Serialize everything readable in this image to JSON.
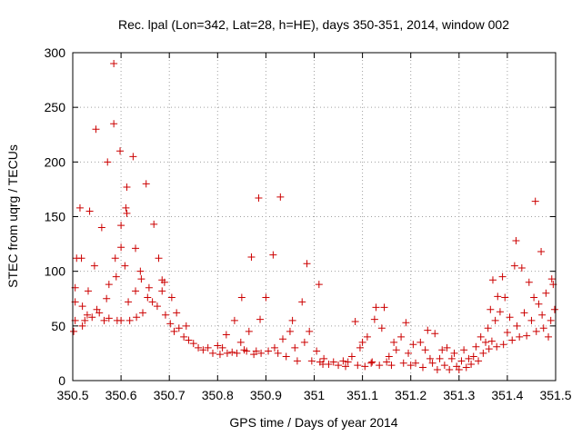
{
  "chart_data": {
    "type": "scatter",
    "title": "Rec. lpal (Lon=342, Lat=28, h=HE), days 350-351, 2014, window 002",
    "xlabel": "GPS time / Days of year 2014",
    "ylabel": "STEC from uqrg / TECUs",
    "xlim": [
      350.5,
      351.5
    ],
    "ylim": [
      0,
      300
    ],
    "xticks": [
      350.5,
      350.6,
      350.7,
      350.8,
      350.9,
      351,
      351.1,
      351.2,
      351.3,
      351.4,
      351.5
    ],
    "xtick_labels": [
      "350.5",
      "350.6",
      "350.7",
      "350.8",
      "350.9",
      "351",
      "351.1",
      "351.2",
      "351.3",
      "351.4",
      "351.5"
    ],
    "yticks": [
      0,
      50,
      100,
      150,
      200,
      250,
      300
    ],
    "ytick_labels": [
      "0",
      "50",
      "100",
      "150",
      "200",
      "250",
      "300"
    ],
    "grid": true,
    "marker": "+",
    "marker_color": "#cc0000",
    "points": [
      [
        350.502,
        45
      ],
      [
        350.505,
        55
      ],
      [
        350.505,
        72
      ],
      [
        350.505,
        85
      ],
      [
        350.508,
        112
      ],
      [
        350.515,
        158
      ],
      [
        350.518,
        112
      ],
      [
        350.52,
        68
      ],
      [
        350.52,
        50
      ],
      [
        350.525,
        55
      ],
      [
        350.53,
        60
      ],
      [
        350.532,
        82
      ],
      [
        350.535,
        155
      ],
      [
        350.54,
        58
      ],
      [
        350.545,
        105
      ],
      [
        350.548,
        230
      ],
      [
        350.55,
        65
      ],
      [
        350.555,
        62
      ],
      [
        350.56,
        140
      ],
      [
        350.565,
        55
      ],
      [
        350.57,
        75
      ],
      [
        350.572,
        200
      ],
      [
        350.575,
        88
      ],
      [
        350.575,
        57
      ],
      [
        350.585,
        290
      ],
      [
        350.585,
        235
      ],
      [
        350.588,
        112
      ],
      [
        350.59,
        95
      ],
      [
        350.592,
        55
      ],
      [
        350.598,
        210
      ],
      [
        350.6,
        142
      ],
      [
        350.6,
        122
      ],
      [
        350.6,
        55
      ],
      [
        350.608,
        105
      ],
      [
        350.61,
        158
      ],
      [
        350.612,
        177
      ],
      [
        350.612,
        153
      ],
      [
        350.615,
        72
      ],
      [
        350.618,
        55
      ],
      [
        350.625,
        205
      ],
      [
        350.63,
        121
      ],
      [
        350.63,
        82
      ],
      [
        350.632,
        58
      ],
      [
        350.64,
        100
      ],
      [
        350.642,
        93
      ],
      [
        350.645,
        62
      ],
      [
        350.652,
        180
      ],
      [
        350.655,
        76
      ],
      [
        350.658,
        85
      ],
      [
        350.665,
        72
      ],
      [
        350.668,
        143
      ],
      [
        350.675,
        68
      ],
      [
        350.678,
        112
      ],
      [
        350.685,
        82
      ],
      [
        350.685,
        92
      ],
      [
        350.69,
        90
      ],
      [
        350.692,
        60
      ],
      [
        350.702,
        52
      ],
      [
        350.705,
        76
      ],
      [
        350.71,
        45
      ],
      [
        350.715,
        62
      ],
      [
        350.72,
        48
      ],
      [
        350.73,
        40
      ],
      [
        350.735,
        50
      ],
      [
        350.74,
        37
      ],
      [
        350.75,
        34
      ],
      [
        350.76,
        30
      ],
      [
        350.77,
        28
      ],
      [
        350.78,
        30
      ],
      [
        350.79,
        25
      ],
      [
        350.8,
        32
      ],
      [
        350.805,
        24
      ],
      [
        350.81,
        30
      ],
      [
        350.818,
        42
      ],
      [
        350.82,
        25
      ],
      [
        350.83,
        26
      ],
      [
        350.835,
        55
      ],
      [
        350.84,
        25
      ],
      [
        350.848,
        35
      ],
      [
        350.85,
        76
      ],
      [
        350.855,
        28
      ],
      [
        350.86,
        27
      ],
      [
        350.865,
        45
      ],
      [
        350.87,
        113
      ],
      [
        350.875,
        24
      ],
      [
        350.88,
        27
      ],
      [
        350.885,
        167
      ],
      [
        350.888,
        56
      ],
      [
        350.89,
        25
      ],
      [
        350.9,
        76
      ],
      [
        350.905,
        27
      ],
      [
        350.915,
        115
      ],
      [
        350.918,
        30
      ],
      [
        350.925,
        25
      ],
      [
        350.93,
        168
      ],
      [
        350.935,
        38
      ],
      [
        350.942,
        22
      ],
      [
        350.95,
        45
      ],
      [
        350.955,
        55
      ],
      [
        350.96,
        30
      ],
      [
        350.965,
        18
      ],
      [
        350.975,
        72
      ],
      [
        350.98,
        35
      ],
      [
        350.985,
        107
      ],
      [
        350.99,
        45
      ],
      [
        350.995,
        18
      ],
      [
        351.005,
        27
      ],
      [
        351.01,
        88
      ],
      [
        351.012,
        17
      ],
      [
        351.018,
        15
      ],
      [
        351.02,
        20
      ],
      [
        351.03,
        15
      ],
      [
        351.04,
        17
      ],
      [
        351.05,
        14
      ],
      [
        351.06,
        18
      ],
      [
        351.065,
        13
      ],
      [
        351.07,
        17
      ],
      [
        351.078,
        22
      ],
      [
        351.085,
        54
      ],
      [
        351.09,
        14
      ],
      [
        351.095,
        30
      ],
      [
        351.1,
        35
      ],
      [
        351.105,
        13
      ],
      [
        351.11,
        40
      ],
      [
        351.118,
        16
      ],
      [
        351.12,
        17
      ],
      [
        351.125,
        56
      ],
      [
        351.128,
        67
      ],
      [
        351.135,
        14
      ],
      [
        351.14,
        48
      ],
      [
        351.145,
        67
      ],
      [
        351.15,
        17
      ],
      [
        351.155,
        22
      ],
      [
        351.16,
        14
      ],
      [
        351.165,
        35
      ],
      [
        351.17,
        28
      ],
      [
        351.18,
        40
      ],
      [
        351.185,
        16
      ],
      [
        351.19,
        53
      ],
      [
        351.195,
        25
      ],
      [
        351.2,
        14
      ],
      [
        351.205,
        33
      ],
      [
        351.21,
        16
      ],
      [
        351.22,
        35
      ],
      [
        351.225,
        12
      ],
      [
        351.23,
        28
      ],
      [
        351.235,
        46
      ],
      [
        351.24,
        20
      ],
      [
        351.245,
        16
      ],
      [
        351.25,
        43
      ],
      [
        351.255,
        10
      ],
      [
        351.26,
        20
      ],
      [
        351.265,
        28
      ],
      [
        351.27,
        14
      ],
      [
        351.275,
        30
      ],
      [
        351.28,
        10
      ],
      [
        351.285,
        20
      ],
      [
        351.29,
        25
      ],
      [
        351.295,
        13
      ],
      [
        351.3,
        10
      ],
      [
        351.305,
        18
      ],
      [
        351.31,
        28
      ],
      [
        351.315,
        12
      ],
      [
        351.32,
        20
      ],
      [
        351.325,
        15
      ],
      [
        351.33,
        22
      ],
      [
        351.335,
        31
      ],
      [
        351.34,
        18
      ],
      [
        351.345,
        40
      ],
      [
        351.35,
        25
      ],
      [
        351.355,
        35
      ],
      [
        351.36,
        48
      ],
      [
        351.362,
        29
      ],
      [
        351.365,
        65
      ],
      [
        351.368,
        36
      ],
      [
        351.37,
        92
      ],
      [
        351.375,
        55
      ],
      [
        351.378,
        31
      ],
      [
        351.38,
        77
      ],
      [
        351.385,
        63
      ],
      [
        351.39,
        95
      ],
      [
        351.392,
        33
      ],
      [
        351.395,
        76
      ],
      [
        351.4,
        44
      ],
      [
        351.405,
        58
      ],
      [
        351.41,
        37
      ],
      [
        351.415,
        105
      ],
      [
        351.418,
        128
      ],
      [
        351.42,
        50
      ],
      [
        351.425,
        40
      ],
      [
        351.43,
        103
      ],
      [
        351.435,
        62
      ],
      [
        351.44,
        41
      ],
      [
        351.445,
        90
      ],
      [
        351.45,
        55
      ],
      [
        351.455,
        76
      ],
      [
        351.458,
        164
      ],
      [
        351.46,
        45
      ],
      [
        351.465,
        70
      ],
      [
        351.47,
        118
      ],
      [
        351.472,
        60
      ],
      [
        351.475,
        48
      ],
      [
        351.48,
        80
      ],
      [
        351.485,
        40
      ],
      [
        351.49,
        55
      ],
      [
        351.492,
        93
      ],
      [
        351.495,
        88
      ],
      [
        351.498,
        65
      ]
    ]
  }
}
